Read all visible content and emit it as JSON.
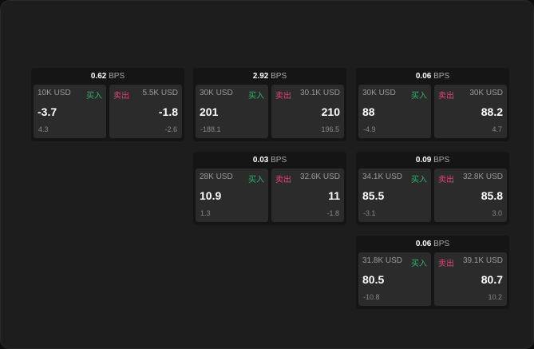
{
  "unit": "BPS",
  "buy_label": "买入",
  "sell_label": "卖出",
  "cards": [
    {
      "bps": "0.62",
      "buy_size": "10K USD",
      "buy_price": "-3.7",
      "buy_delta": "4.3",
      "sell_size": "5.5K USD",
      "sell_price": "-1.8",
      "sell_delta": "-2.6"
    },
    {
      "bps": "2.92",
      "buy_size": "30K USD",
      "buy_price": "201",
      "buy_delta": "-188.1",
      "sell_size": "30.1K USD",
      "sell_price": "210",
      "sell_delta": "196.5"
    },
    {
      "bps": "0.06",
      "buy_size": "30K USD",
      "buy_price": "88",
      "buy_delta": "-4.9",
      "sell_size": "30K USD",
      "sell_price": "88.2",
      "sell_delta": "4.7"
    },
    {
      "bps": "0.03",
      "buy_size": "28K USD",
      "buy_price": "10.9",
      "buy_delta": "1.3",
      "sell_size": "32.6K USD",
      "sell_price": "11",
      "sell_delta": "-1.8"
    },
    {
      "bps": "0.09",
      "buy_size": "34.1K USD",
      "buy_price": "85.5",
      "buy_delta": "-3.1",
      "sell_size": "32.8K USD",
      "sell_price": "85.8",
      "sell_delta": "3.0"
    },
    {
      "bps": "0.06",
      "buy_size": "31.8K USD",
      "buy_price": "80.5",
      "buy_delta": "-10.8",
      "sell_size": "39.1K USD",
      "sell_price": "80.7",
      "sell_delta": "10.2"
    }
  ]
}
